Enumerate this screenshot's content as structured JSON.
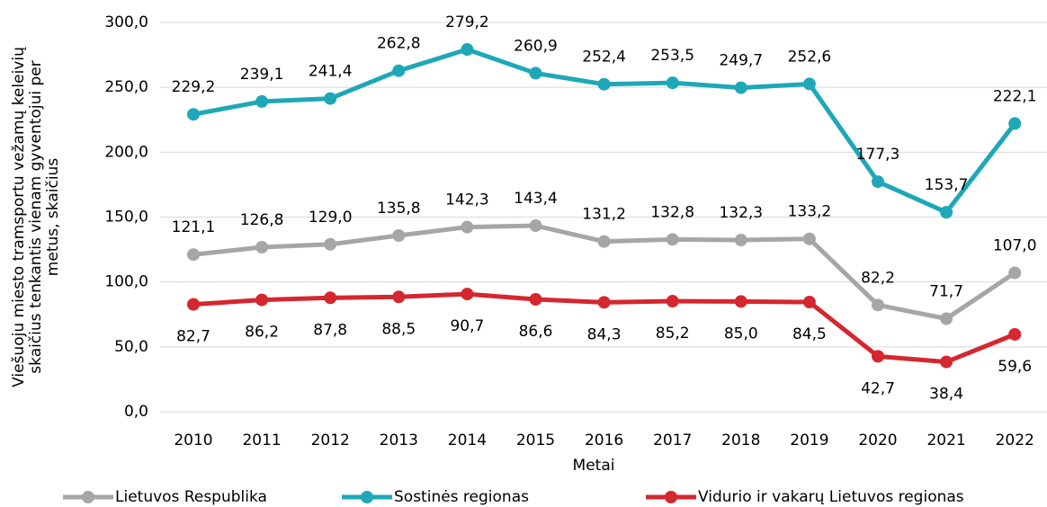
{
  "chart_data": {
    "type": "line",
    "xlabel": "Metai",
    "ylabel": [
      "Viešuoju miesto tramsportu vežamų keleivių",
      "skaičius tenkantis vienam gyventojui per",
      "metus, skaičius"
    ],
    "categories": [
      "2010",
      "2011",
      "2012",
      "2013",
      "2014",
      "2015",
      "2016",
      "2017",
      "2018",
      "2019",
      "2020",
      "2021",
      "2022"
    ],
    "series": [
      {
        "name": "Lietuvos Respublika",
        "color": "#a6a6a6",
        "values": [
          121.1,
          126.8,
          129.0,
          135.8,
          142.3,
          143.4,
          131.2,
          132.8,
          132.3,
          133.2,
          82.2,
          71.7,
          107.0
        ],
        "value_labels": [
          "121,1",
          "126,8",
          "129,0",
          "135,8",
          "142,3",
          "143,4",
          "131,2",
          "132,8",
          "132,3",
          "133,2",
          "82,2",
          "71,7",
          "107,0"
        ]
      },
      {
        "name": "Sostinės regionas",
        "color": "#1ea8b7",
        "values": [
          229.2,
          239.1,
          241.4,
          262.8,
          279.2,
          260.9,
          252.4,
          253.5,
          249.7,
          252.6,
          177.3,
          153.7,
          222.1
        ],
        "value_labels": [
          "229,2",
          "239,1",
          "241,4",
          "262,8",
          "279,2",
          "260,9",
          "252,4",
          "253,5",
          "249,7",
          "252,6",
          "177,3",
          "153,7",
          "222,1"
        ]
      },
      {
        "name": "Vidurio ir vakarų Lietuvos regionas",
        "color": "#d42730",
        "values": [
          82.7,
          86.2,
          87.8,
          88.5,
          90.7,
          86.6,
          84.3,
          85.2,
          85.0,
          84.5,
          42.7,
          38.4,
          59.6
        ],
        "value_labels": [
          "82,7",
          "86,2",
          "87,8",
          "88,5",
          "90,7",
          "86,6",
          "84,3",
          "85,2",
          "85,0",
          "84,5",
          "42,7",
          "38,4",
          "59,6"
        ]
      }
    ],
    "ylim": [
      0,
      300
    ],
    "yticks": [
      {
        "value": 0,
        "label": "0,0"
      },
      {
        "value": 50,
        "label": "50,0"
      },
      {
        "value": 100,
        "label": "100,0"
      },
      {
        "value": 150,
        "label": "150,0"
      },
      {
        "value": 200,
        "label": "200,0"
      },
      {
        "value": 250,
        "label": "250,0"
      },
      {
        "value": 300,
        "label": "300,0"
      }
    ],
    "grid": true,
    "legend": "bottom"
  }
}
